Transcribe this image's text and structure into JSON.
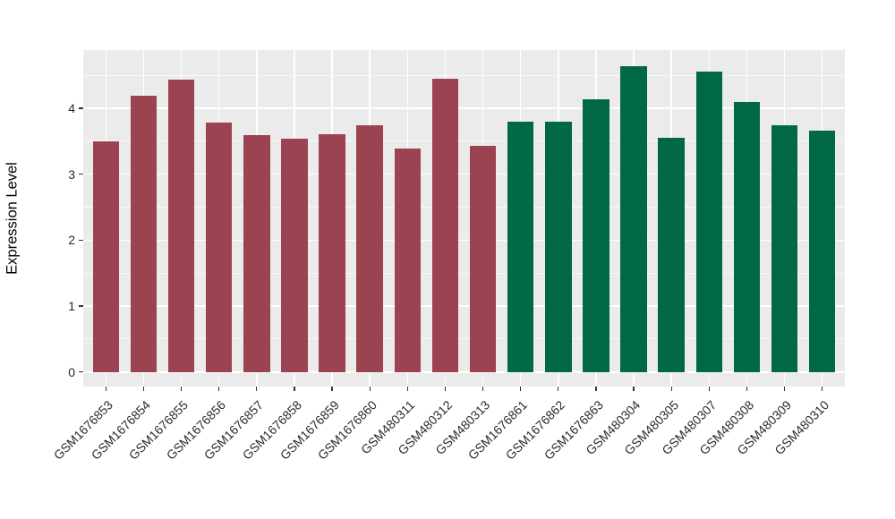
{
  "colors": {
    "figure_background": "#ffffff",
    "panel_background": "#ebebeb",
    "grid_color": "#ffffff",
    "tick_mark_color": "#333333",
    "tick_label_color": "#2b2b2b",
    "axis_title_color": "#000000"
  },
  "chart_data": {
    "type": "bar",
    "title": "",
    "xlabel": "",
    "ylabel": "Expression Level",
    "categories": [
      "GSM1676853",
      "GSM1676854",
      "GSM1676855",
      "GSM1676856",
      "GSM1676857",
      "GSM1676858",
      "GSM1676859",
      "GSM1676860",
      "GSM480311",
      "GSM480312",
      "GSM480313",
      "GSM1676861",
      "GSM1676862",
      "GSM1676863",
      "GSM480304",
      "GSM480305",
      "GSM480307",
      "GSM480308",
      "GSM480309",
      "GSM480310"
    ],
    "values": [
      3.49,
      4.19,
      4.43,
      3.78,
      3.59,
      3.54,
      3.61,
      3.74,
      3.39,
      4.45,
      3.43,
      3.8,
      3.79,
      4.13,
      4.63,
      3.55,
      4.56,
      4.1,
      3.74,
      3.66
    ],
    "bar_groups": [
      "group1",
      "group1",
      "group1",
      "group1",
      "group1",
      "group1",
      "group1",
      "group1",
      "group1",
      "group1",
      "group1",
      "group2",
      "group2",
      "group2",
      "group2",
      "group2",
      "group2",
      "group2",
      "group2",
      "group2"
    ],
    "group_colors": {
      "group1": "#9c4351",
      "group2": "#016847"
    },
    "yticks": [
      0,
      1,
      2,
      3,
      4
    ],
    "minor_yticks": [
      0.5,
      1.5,
      2.5,
      3.5,
      4.5
    ],
    "ylim": [
      -0.22,
      4.88
    ],
    "grid": "on",
    "legend": "none",
    "bar_width_fraction": 0.7
  }
}
